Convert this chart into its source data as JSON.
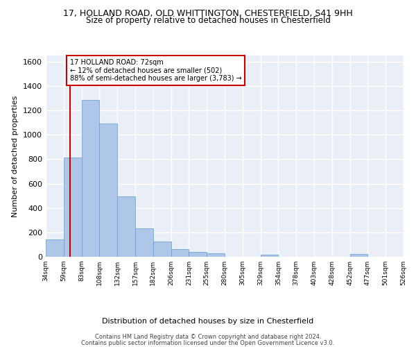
{
  "title_line1": "17, HOLLAND ROAD, OLD WHITTINGTON, CHESTERFIELD, S41 9HH",
  "title_line2": "Size of property relative to detached houses in Chesterfield",
  "xlabel": "Distribution of detached houses by size in Chesterfield",
  "ylabel": "Number of detached properties",
  "footer_line1": "Contains HM Land Registry data © Crown copyright and database right 2024.",
  "footer_line2": "Contains public sector information licensed under the Open Government Licence v3.0.",
  "bar_values": [
    140,
    815,
    1285,
    1095,
    495,
    235,
    125,
    65,
    38,
    27,
    0,
    0,
    17,
    0,
    0,
    0,
    0,
    20,
    0,
    0
  ],
  "bar_labels": [
    "34sqm",
    "59sqm",
    "83sqm",
    "108sqm",
    "132sqm",
    "157sqm",
    "182sqm",
    "206sqm",
    "231sqm",
    "255sqm",
    "280sqm",
    "305sqm",
    "329sqm",
    "354sqm",
    "378sqm",
    "403sqm",
    "428sqm",
    "452sqm",
    "477sqm",
    "501sqm",
    "526sqm"
  ],
  "bar_color": "#aec6e8",
  "bar_edge_color": "#5b9bd5",
  "vline_x": 1.35,
  "vline_color": "#cc0000",
  "annotation_text": "17 HOLLAND ROAD: 72sqm\n← 12% of detached houses are smaller (502)\n88% of semi-detached houses are larger (3,783) →",
  "annotation_box_color": "#cc0000",
  "ylim": [
    0,
    1650
  ],
  "yticks": [
    0,
    200,
    400,
    600,
    800,
    1000,
    1200,
    1400,
    1600
  ],
  "bg_color": "#eaeff7",
  "grid_color": "#ffffff",
  "title1_fontsize": 9,
  "title2_fontsize": 8.5,
  "xlabel_fontsize": 8,
  "ylabel_fontsize": 8
}
